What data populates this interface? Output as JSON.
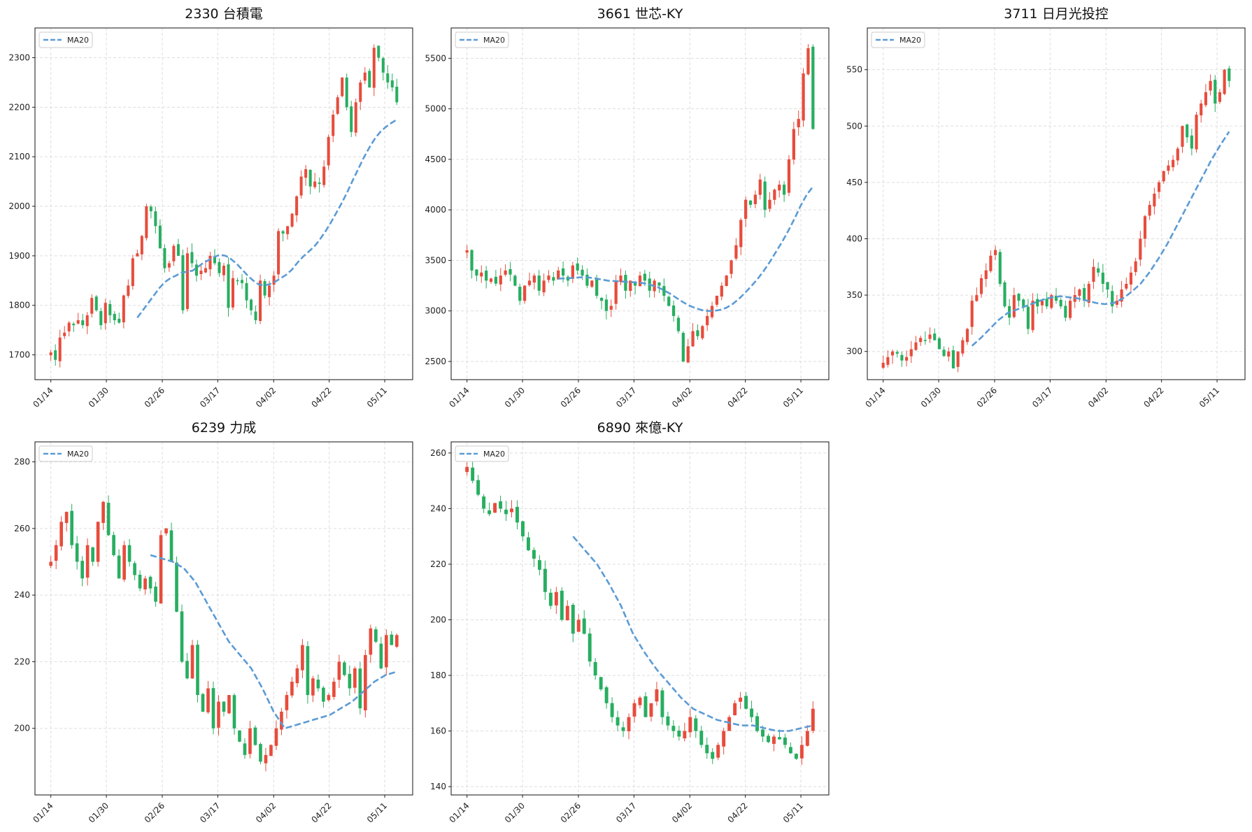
{
  "colors": {
    "up": "#e74c3c",
    "down": "#27ae60",
    "ma": "#5b9bd5",
    "grid": "#dddddd"
  },
  "chart_data": [
    {
      "type": "candlestick",
      "title": "2330 台積電",
      "legend": [
        "MA20"
      ],
      "legend_position": "top-left",
      "grid": true,
      "ylim": [
        1650,
        2360
      ],
      "yticks": [
        1700,
        1800,
        1900,
        2000,
        2100,
        2200,
        2300
      ],
      "xticks": [
        "01/14",
        "01/30",
        "02/26",
        "03/17",
        "04/02",
        "04/22",
        "05/11"
      ],
      "close_guide": [
        1705,
        1690,
        1735,
        1745,
        1765,
        1760,
        1770,
        1760,
        1780,
        1815,
        1790,
        1760,
        1805,
        1780,
        1770,
        1765,
        1820,
        1840,
        1895,
        1905,
        1940,
        2000,
        1990,
        1960,
        1915,
        1875,
        1885,
        1920,
        1900,
        1790,
        1905,
        1885,
        1860,
        1870,
        1875,
        1900,
        1885,
        1865,
        1880,
        1795,
        1855,
        1850,
        1845,
        1810,
        1790,
        1770,
        1850,
        1820,
        1840,
        1860,
        1950,
        1945,
        1960,
        1985,
        2020,
        2060,
        2075,
        2040,
        2050,
        2045,
        2080,
        2140,
        2185,
        2220,
        2260,
        2200,
        2150,
        2210,
        2250,
        2270,
        2240,
        2320,
        2300,
        2270,
        2250,
        2240,
        2210
      ],
      "ma_start_index": 19,
      "ma20": [
        1775,
        1790,
        1805,
        1820,
        1835,
        1847,
        1855,
        1860,
        1866,
        1868,
        1870,
        1878,
        1886,
        1892,
        1898,
        1902,
        1900,
        1893,
        1884,
        1872,
        1860,
        1850,
        1842,
        1840,
        1843,
        1848,
        1855,
        1862,
        1872,
        1886,
        1898,
        1908,
        1918,
        1932,
        1948,
        1966,
        1986,
        2006,
        2028,
        2052,
        2075,
        2098,
        2118,
        2136,
        2150,
        2160,
        2168,
        2175
      ]
    },
    {
      "type": "candlestick",
      "title": "3661 世芯-KY",
      "legend": [
        "MA20"
      ],
      "legend_position": "top-left",
      "grid": true,
      "ylim": [
        2320,
        5800
      ],
      "yticks": [
        2500,
        3000,
        3500,
        4000,
        4500,
        5000,
        5500
      ],
      "xticks": [
        "01/14",
        "01/30",
        "02/26",
        "03/17",
        "04/02",
        "04/22",
        "05/11"
      ],
      "close_guide": [
        3600,
        3400,
        3350,
        3380,
        3300,
        3320,
        3270,
        3350,
        3400,
        3360,
        3250,
        3100,
        3250,
        3300,
        3350,
        3200,
        3300,
        3350,
        3300,
        3400,
        3350,
        3300,
        3450,
        3400,
        3350,
        3250,
        3300,
        3150,
        3100,
        3000,
        3050,
        3300,
        3350,
        3200,
        3300,
        3250,
        3350,
        3300,
        3200,
        3300,
        3250,
        3150,
        3050,
        2950,
        2800,
        2500,
        2650,
        2800,
        2750,
        2850,
        2950,
        3050,
        3150,
        3250,
        3350,
        3500,
        3650,
        3900,
        4100,
        4050,
        4150,
        4300,
        4000,
        4100,
        4200,
        4250,
        4150,
        4500,
        4800,
        4900,
        5350,
        5600,
        4800
      ],
      "ma_start_index": 19,
      "ma20": [
        3320,
        3322,
        3325,
        3330,
        3334,
        3330,
        3322,
        3310,
        3300,
        3296,
        3292,
        3288,
        3284,
        3280,
        3272,
        3255,
        3235,
        3205,
        3170,
        3130,
        3090,
        3055,
        3030,
        3010,
        3000,
        3000,
        3010,
        3030,
        3065,
        3115,
        3175,
        3240,
        3310,
        3390,
        3480,
        3580,
        3680,
        3790,
        3910,
        4040,
        4150,
        4230
      ]
    },
    {
      "type": "candlestick",
      "title": "3711 日月光投控",
      "legend": [
        "MA20"
      ],
      "legend_position": "top-left",
      "grid": true,
      "ylim": [
        275,
        587
      ],
      "yticks": [
        300,
        350,
        400,
        450,
        500,
        550
      ],
      "xticks": [
        "01/14",
        "01/30",
        "02/26",
        "03/17",
        "04/02",
        "04/22",
        "05/11"
      ],
      "close_guide": [
        290,
        295,
        300,
        298,
        292,
        295,
        302,
        308,
        312,
        310,
        315,
        310,
        302,
        296,
        300,
        285,
        300,
        310,
        320,
        345,
        350,
        365,
        372,
        385,
        390,
        360,
        340,
        330,
        350,
        345,
        340,
        320,
        345,
        340,
        345,
        340,
        350,
        345,
        340,
        330,
        345,
        350,
        355,
        345,
        360,
        375,
        370,
        360,
        355,
        340,
        345,
        355,
        360,
        370,
        380,
        400,
        420,
        430,
        440,
        450,
        460,
        465,
        470,
        480,
        500,
        490,
        480,
        510,
        520,
        530,
        540,
        520,
        530,
        550,
        540
      ],
      "ma_start_index": 19,
      "ma20": [
        305,
        312,
        320,
        328,
        334,
        337,
        340,
        343,
        346,
        348,
        349,
        348,
        347,
        345,
        343,
        342,
        343,
        347,
        353,
        360,
        370,
        382,
        395,
        410,
        425,
        440,
        455,
        470,
        483,
        495
      ]
    },
    {
      "type": "candlestick",
      "title": "6239 力成",
      "legend": [
        "MA20"
      ],
      "legend_position": "top-left",
      "grid": true,
      "ylim": [
        180,
        286
      ],
      "yticks": [
        200,
        220,
        240,
        260,
        280
      ],
      "xticks": [
        "01/14",
        "01/30",
        "02/26",
        "03/17",
        "04/02",
        "04/22",
        "05/11"
      ],
      "close_guide": [
        250,
        255,
        262,
        265,
        255,
        250,
        245,
        255,
        250,
        262,
        268,
        258,
        252,
        245,
        255,
        250,
        246,
        242,
        245,
        242,
        238,
        258,
        260,
        250,
        235,
        220,
        215,
        225,
        210,
        205,
        212,
        200,
        208,
        205,
        210,
        200,
        196,
        192,
        200,
        195,
        190,
        192,
        195,
        200,
        205,
        210,
        214,
        218,
        225,
        210,
        215,
        212,
        208,
        210,
        214,
        220,
        216,
        212,
        218,
        206,
        222,
        230,
        226,
        218,
        228,
        225,
        228
      ],
      "ma_start_index": 19,
      "ma20": [
        252,
        251,
        250,
        248,
        244,
        238,
        232,
        226,
        222,
        218,
        212,
        205,
        200,
        201,
        202,
        203,
        204,
        206,
        208,
        211,
        214,
        216,
        217
      ]
    },
    {
      "type": "candlestick",
      "title": "6890 來億-KY",
      "legend": [
        "MA20"
      ],
      "legend_position": "top-left",
      "grid": true,
      "ylim": [
        137,
        264
      ],
      "yticks": [
        140,
        160,
        180,
        200,
        220,
        240,
        260
      ],
      "xticks": [
        "01/14",
        "01/30",
        "02/26",
        "03/17",
        "04/02",
        "04/22",
        "05/11"
      ],
      "close_guide": [
        255,
        250,
        245,
        240,
        238,
        242,
        240,
        238,
        240,
        235,
        230,
        225,
        222,
        218,
        210,
        205,
        210,
        200,
        205,
        195,
        200,
        195,
        185,
        180,
        175,
        170,
        165,
        162,
        160,
        165,
        170,
        172,
        165,
        170,
        175,
        165,
        162,
        160,
        158,
        160,
        165,
        160,
        155,
        152,
        150,
        155,
        160,
        165,
        170,
        172,
        168,
        165,
        160,
        158,
        156,
        158,
        157,
        155,
        152,
        150,
        155,
        160,
        168
      ],
      "ma_start_index": 19,
      "ma20": [
        230,
        225,
        220,
        213,
        205,
        195,
        188,
        182,
        177,
        172,
        168,
        166,
        164,
        163,
        162,
        162,
        161,
        160,
        160,
        161,
        162
      ]
    }
  ]
}
